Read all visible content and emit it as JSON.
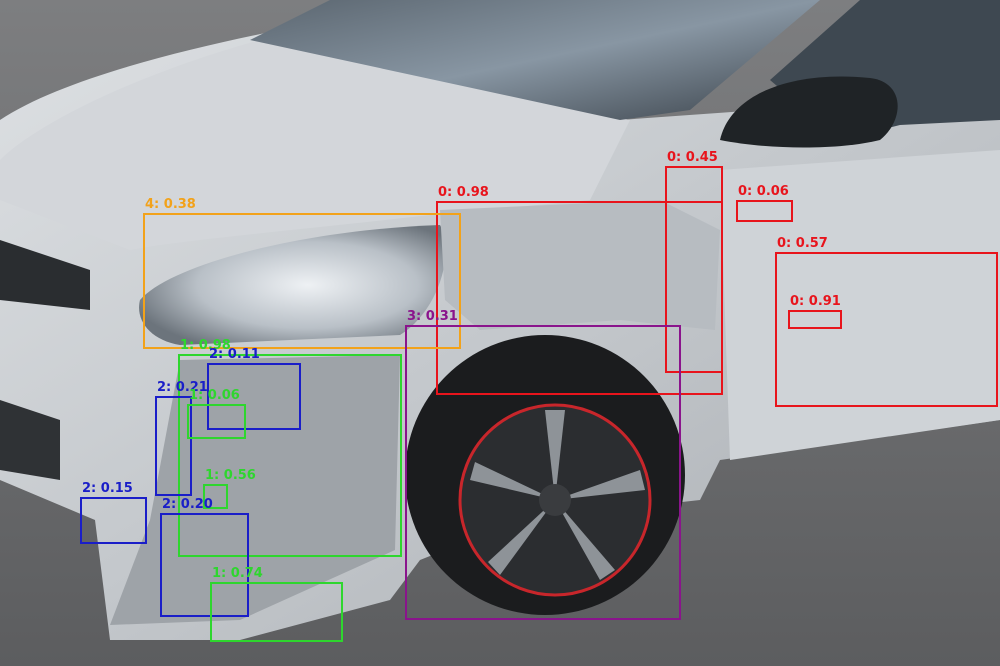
{
  "photo": {
    "subject": "damaged silver hatchback, front-left corner",
    "colors": {
      "body": "#c9cdd1",
      "road": "#6d6e70",
      "tire": "#1b1c1e",
      "rim_accent": "#c8262b"
    }
  },
  "class_colors": {
    "0": "#e8141c",
    "1": "#2ed62e",
    "2": "#1a1ec8",
    "3": "#8a148c",
    "4": "#f2a21a"
  },
  "detections": [
    {
      "label": "0: 0.98",
      "cls": "0"
    },
    {
      "label": "0: 0.45",
      "cls": "0"
    },
    {
      "label": "0: 0.06",
      "cls": "0"
    },
    {
      "label": "0: 0.57",
      "cls": "0"
    },
    {
      "label": "0: 0.91",
      "cls": "0"
    },
    {
      "label": "4: 0.38",
      "cls": "4"
    },
    {
      "label": "3: 0.31",
      "cls": "3"
    },
    {
      "label": "1: 0.98",
      "cls": "1"
    },
    {
      "label": "2: 0.11",
      "cls": "2"
    },
    {
      "label": "2: 0.21",
      "cls": "2"
    },
    {
      "label": "1: 0.06",
      "cls": "1"
    },
    {
      "label": "1: 0.56",
      "cls": "1"
    },
    {
      "label": "2: 0.15",
      "cls": "2"
    },
    {
      "label": "2: 0.20",
      "cls": "2"
    },
    {
      "label": "1: 0.74",
      "cls": "1"
    }
  ]
}
